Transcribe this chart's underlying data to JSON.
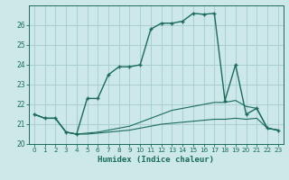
{
  "xlabel": "Humidex (Indice chaleur)",
  "bg_color": "#cce8e8",
  "line_color": "#1a6b5a",
  "grid_color": "#aacfcf",
  "xlim": [
    -0.5,
    23.5
  ],
  "ylim": [
    20,
    27
  ],
  "yticks": [
    20,
    21,
    22,
    23,
    24,
    25,
    26
  ],
  "xticks": [
    0,
    1,
    2,
    3,
    4,
    5,
    6,
    7,
    8,
    9,
    10,
    11,
    12,
    13,
    14,
    15,
    16,
    17,
    18,
    19,
    20,
    21,
    22,
    23
  ],
  "series1_x": [
    0,
    1,
    2,
    3,
    4,
    5,
    6,
    7,
    8,
    9,
    10,
    11,
    12,
    13,
    14,
    15,
    16,
    17,
    18,
    19,
    20,
    21,
    22,
    23
  ],
  "series1_y": [
    21.5,
    21.3,
    21.3,
    20.6,
    20.5,
    22.3,
    22.3,
    23.5,
    23.9,
    23.9,
    24.0,
    25.8,
    26.1,
    26.1,
    26.2,
    26.6,
    26.55,
    26.6,
    22.2,
    24.0,
    21.5,
    21.8,
    20.8,
    20.7
  ],
  "series2_x": [
    0,
    1,
    2,
    3,
    4,
    5,
    6,
    7,
    8,
    9,
    10,
    11,
    12,
    13,
    14,
    15,
    16,
    17,
    18,
    19,
    20,
    21,
    22,
    23
  ],
  "series2_y": [
    21.5,
    21.3,
    21.3,
    20.6,
    20.5,
    20.55,
    20.6,
    20.7,
    20.8,
    20.9,
    21.1,
    21.3,
    21.5,
    21.7,
    21.8,
    21.9,
    22.0,
    22.1,
    22.1,
    22.2,
    21.9,
    21.8,
    20.8,
    20.7
  ],
  "series3_x": [
    0,
    1,
    2,
    3,
    4,
    5,
    6,
    7,
    8,
    9,
    10,
    11,
    12,
    13,
    14,
    15,
    16,
    17,
    18,
    19,
    20,
    21,
    22,
    23
  ],
  "series3_y": [
    21.5,
    21.3,
    21.3,
    20.6,
    20.5,
    20.5,
    20.55,
    20.6,
    20.65,
    20.7,
    20.8,
    20.9,
    21.0,
    21.05,
    21.1,
    21.15,
    21.2,
    21.25,
    21.25,
    21.3,
    21.25,
    21.3,
    20.8,
    20.7
  ]
}
